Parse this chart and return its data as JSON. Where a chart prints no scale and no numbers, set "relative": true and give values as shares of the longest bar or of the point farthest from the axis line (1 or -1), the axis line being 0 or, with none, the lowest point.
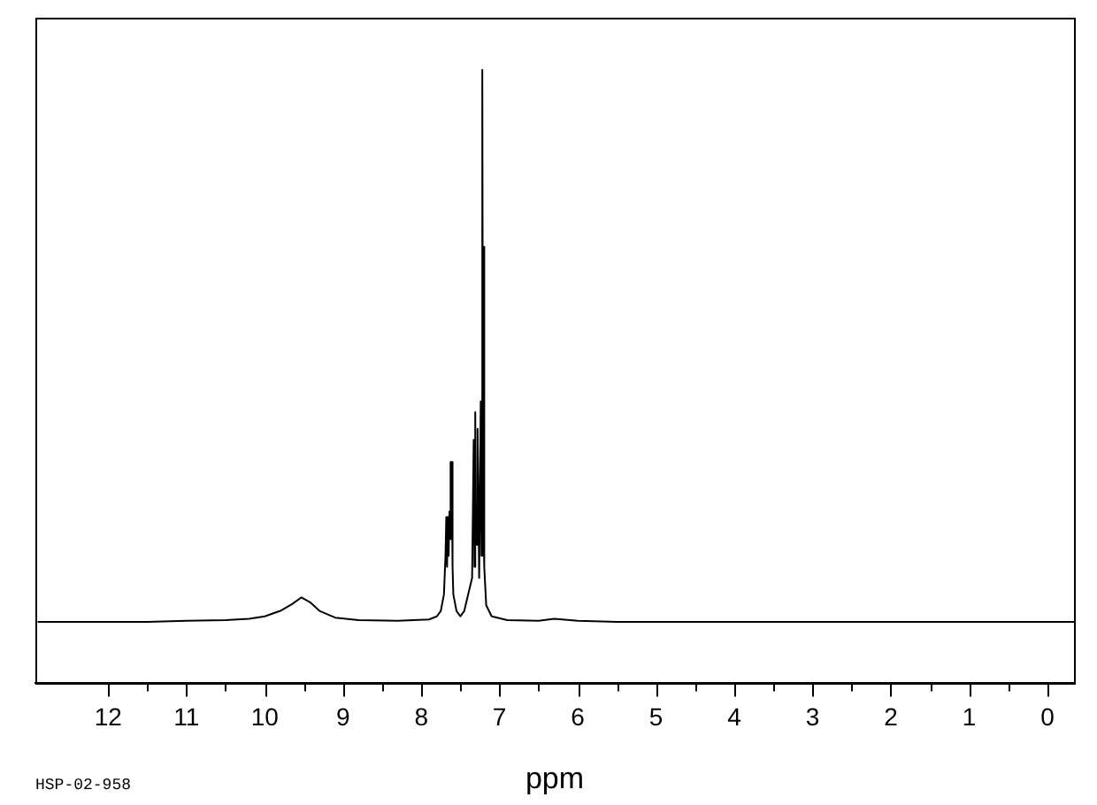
{
  "chart_data": {
    "type": "line",
    "xlabel": "ppm",
    "relative": true,
    "marker": "none",
    "legend": false,
    "grid": false,
    "xlim": [
      12.93,
      -0.34
    ],
    "xticks": [
      12,
      {
        "value": 11.5,
        "label": null
      },
      11,
      {
        "value": 10.5,
        "label": null
      },
      10,
      {
        "value": 9.5,
        "label": null
      },
      9,
      {
        "value": 8.5,
        "label": null
      },
      8,
      {
        "value": 7.5,
        "label": null
      },
      7,
      {
        "value": 6.5,
        "label": null
      },
      6,
      {
        "value": 5.5,
        "label": null
      },
      5,
      {
        "value": 4.5,
        "label": null
      },
      4,
      {
        "value": 3.5,
        "label": null
      },
      3,
      {
        "value": 2.5,
        "label": null
      },
      2,
      {
        "value": 1.5,
        "label": null
      },
      1,
      {
        "value": 0.5,
        "label": null
      },
      0
    ],
    "annotations": [
      "HSP-02-958"
    ],
    "series": [
      {
        "color": "#000000",
        "x": [
          12.9,
          11.5,
          11.0,
          10.5,
          10.2,
          10.0,
          9.8,
          9.65,
          9.53,
          9.42,
          9.3,
          9.1,
          8.8,
          8.3,
          7.9,
          7.8,
          7.75,
          7.71,
          7.69,
          7.68,
          7.67,
          7.66,
          7.65,
          7.64,
          7.63,
          7.62,
          7.61,
          7.6,
          7.59,
          7.55,
          7.5,
          7.45,
          7.4,
          7.35,
          7.33,
          7.32,
          7.31,
          7.3,
          7.28,
          7.26,
          7.24,
          7.23,
          7.22,
          7.21,
          7.2,
          7.19,
          7.17,
          7.1,
          6.9,
          6.5,
          6.3,
          6.0,
          5.5,
          0,
          -0.34
        ],
        "values": [
          0.099,
          0.099,
          0.101,
          0.102,
          0.104,
          0.108,
          0.117,
          0.128,
          0.139,
          0.131,
          0.117,
          0.106,
          0.102,
          0.101,
          0.103,
          0.108,
          0.117,
          0.144,
          0.207,
          0.27,
          0.189,
          0.27,
          0.207,
          0.279,
          0.36,
          0.234,
          0.36,
          0.189,
          0.144,
          0.117,
          0.108,
          0.117,
          0.144,
          0.171,
          0.396,
          0.189,
          0.441,
          0.225,
          0.414,
          0.171,
          0.459,
          0.207,
          1,
          0.279,
          0.711,
          0.189,
          0.126,
          0.108,
          0.102,
          0.101,
          0.104,
          0.101,
          0.099,
          0.099,
          0.099
        ]
      }
    ]
  }
}
